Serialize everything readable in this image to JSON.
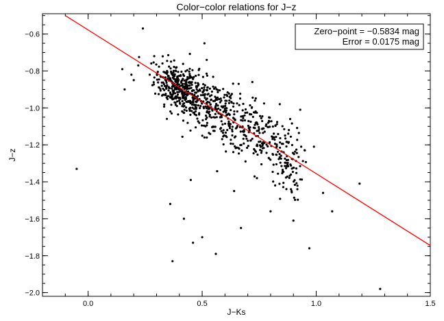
{
  "chart_data": {
    "type": "scatter",
    "title": "Color−color relations for J−z",
    "xlabel": "J−Ks",
    "ylabel": "J−z",
    "xlim": [
      -0.2,
      1.5
    ],
    "ylim": [
      -2.02,
      -0.49
    ],
    "x_ticks": [
      0.0,
      0.5,
      1.0,
      1.5
    ],
    "x_tick_labels": [
      "0.0",
      "0.5",
      "1.0",
      "1.5"
    ],
    "y_ticks": [
      -2.0,
      -1.8,
      -1.6,
      -1.4,
      -1.2,
      -1.0,
      -0.8,
      -0.6
    ],
    "y_tick_labels": [
      "−2.0",
      "−1.8",
      "−1.6",
      "−1.4",
      "−1.2",
      "−1.0",
      "−0.8",
      "−0.6"
    ],
    "fit_line": {
      "x": [
        -0.1,
        1.5
      ],
      "y": [
        -0.5,
        -1.745
      ],
      "color": "#ff0000"
    },
    "annotations": [
      "Zero−point = −0.5834 mag",
      "Error = 0.0175 mag"
    ],
    "annotation_color": "#ff0000",
    "grid": false,
    "legend_placement": "top-right",
    "point_color": "#000000",
    "outliers": [
      {
        "x": -0.05,
        "y": -1.33
      },
      {
        "x": 0.24,
        "y": -0.57
      },
      {
        "x": 0.51,
        "y": -0.65
      },
      {
        "x": 0.36,
        "y": -1.52
      },
      {
        "x": 0.42,
        "y": -1.6
      },
      {
        "x": 0.45,
        "y": -1.39
      },
      {
        "x": 0.37,
        "y": -1.83
      },
      {
        "x": 0.46,
        "y": -1.73
      },
      {
        "x": 0.5,
        "y": -1.7
      },
      {
        "x": 0.56,
        "y": -1.79
      },
      {
        "x": 0.67,
        "y": -1.65
      },
      {
        "x": 0.8,
        "y": -1.56
      },
      {
        "x": 0.9,
        "y": -1.61
      },
      {
        "x": 0.97,
        "y": -1.76
      },
      {
        "x": 1.07,
        "y": -1.56
      },
      {
        "x": 1.03,
        "y": -1.46
      },
      {
        "x": 1.19,
        "y": -1.41
      },
      {
        "x": 1.28,
        "y": -1.98
      },
      {
        "x": 0.15,
        "y": -0.79
      },
      {
        "x": 0.16,
        "y": -0.9
      },
      {
        "x": 0.2,
        "y": -0.85
      },
      {
        "x": 0.29,
        "y": -0.72
      },
      {
        "x": 0.22,
        "y": -0.77
      },
      {
        "x": 0.19,
        "y": -0.82
      },
      {
        "x": 0.52,
        "y": -0.74
      },
      {
        "x": 0.66,
        "y": -0.87
      },
      {
        "x": 0.93,
        "y": -1.01
      },
      {
        "x": 0.99,
        "y": -1.21
      },
      {
        "x": 0.95,
        "y": -1.23
      },
      {
        "x": 0.51,
        "y": -1.16
      },
      {
        "x": 0.69,
        "y": -1.29
      },
      {
        "x": 0.74,
        "y": -1.38
      },
      {
        "x": 0.64,
        "y": -1.45
      },
      {
        "x": 0.82,
        "y": -1.42
      },
      {
        "x": 0.61,
        "y": -1.12
      },
      {
        "x": 0.55,
        "y": -1.05
      },
      {
        "x": 0.27,
        "y": -0.82
      },
      {
        "x": 0.72,
        "y": -0.86
      },
      {
        "x": 0.84,
        "y": -0.98
      },
      {
        "x": 0.88,
        "y": -1.12
      }
    ],
    "clusters": [
      {
        "cx": 0.38,
        "cy": -0.88,
        "sx": 0.045,
        "sy": 0.06,
        "n": 240
      },
      {
        "cx": 0.47,
        "cy": -0.95,
        "sx": 0.055,
        "sy": 0.07,
        "n": 220
      },
      {
        "cx": 0.6,
        "cy": -1.04,
        "sx": 0.06,
        "sy": 0.08,
        "n": 170
      },
      {
        "cx": 0.74,
        "cy": -1.12,
        "sx": 0.055,
        "sy": 0.09,
        "n": 120
      },
      {
        "cx": 0.86,
        "cy": -1.28,
        "sx": 0.04,
        "sy": 0.1,
        "n": 120
      }
    ]
  }
}
